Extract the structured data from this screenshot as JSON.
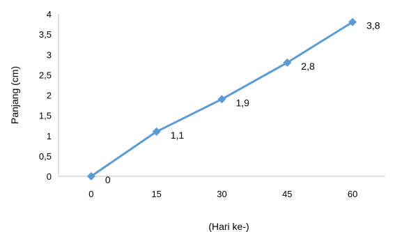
{
  "chart_data": {
    "type": "line",
    "title": "",
    "xlabel": "(Hari ke-)",
    "ylabel": "Panjang (cm)",
    "categories": [
      "0",
      "15",
      "30",
      "45",
      "60"
    ],
    "x": [
      0,
      15,
      30,
      45,
      60
    ],
    "series": [
      {
        "values": [
          0,
          1.1,
          1.9,
          2.8,
          3.8
        ],
        "data_labels": [
          "0",
          "1,1",
          "1,9",
          "2,8",
          "3,8"
        ],
        "color": "#5B9BD5",
        "marker": "diamond"
      }
    ],
    "yticks": [
      "0",
      "0,5",
      "1",
      "1,5",
      "2",
      "2,5",
      "3",
      "3,5",
      "4"
    ],
    "ylim": [
      0,
      4
    ],
    "grid": false,
    "legend": "none"
  }
}
